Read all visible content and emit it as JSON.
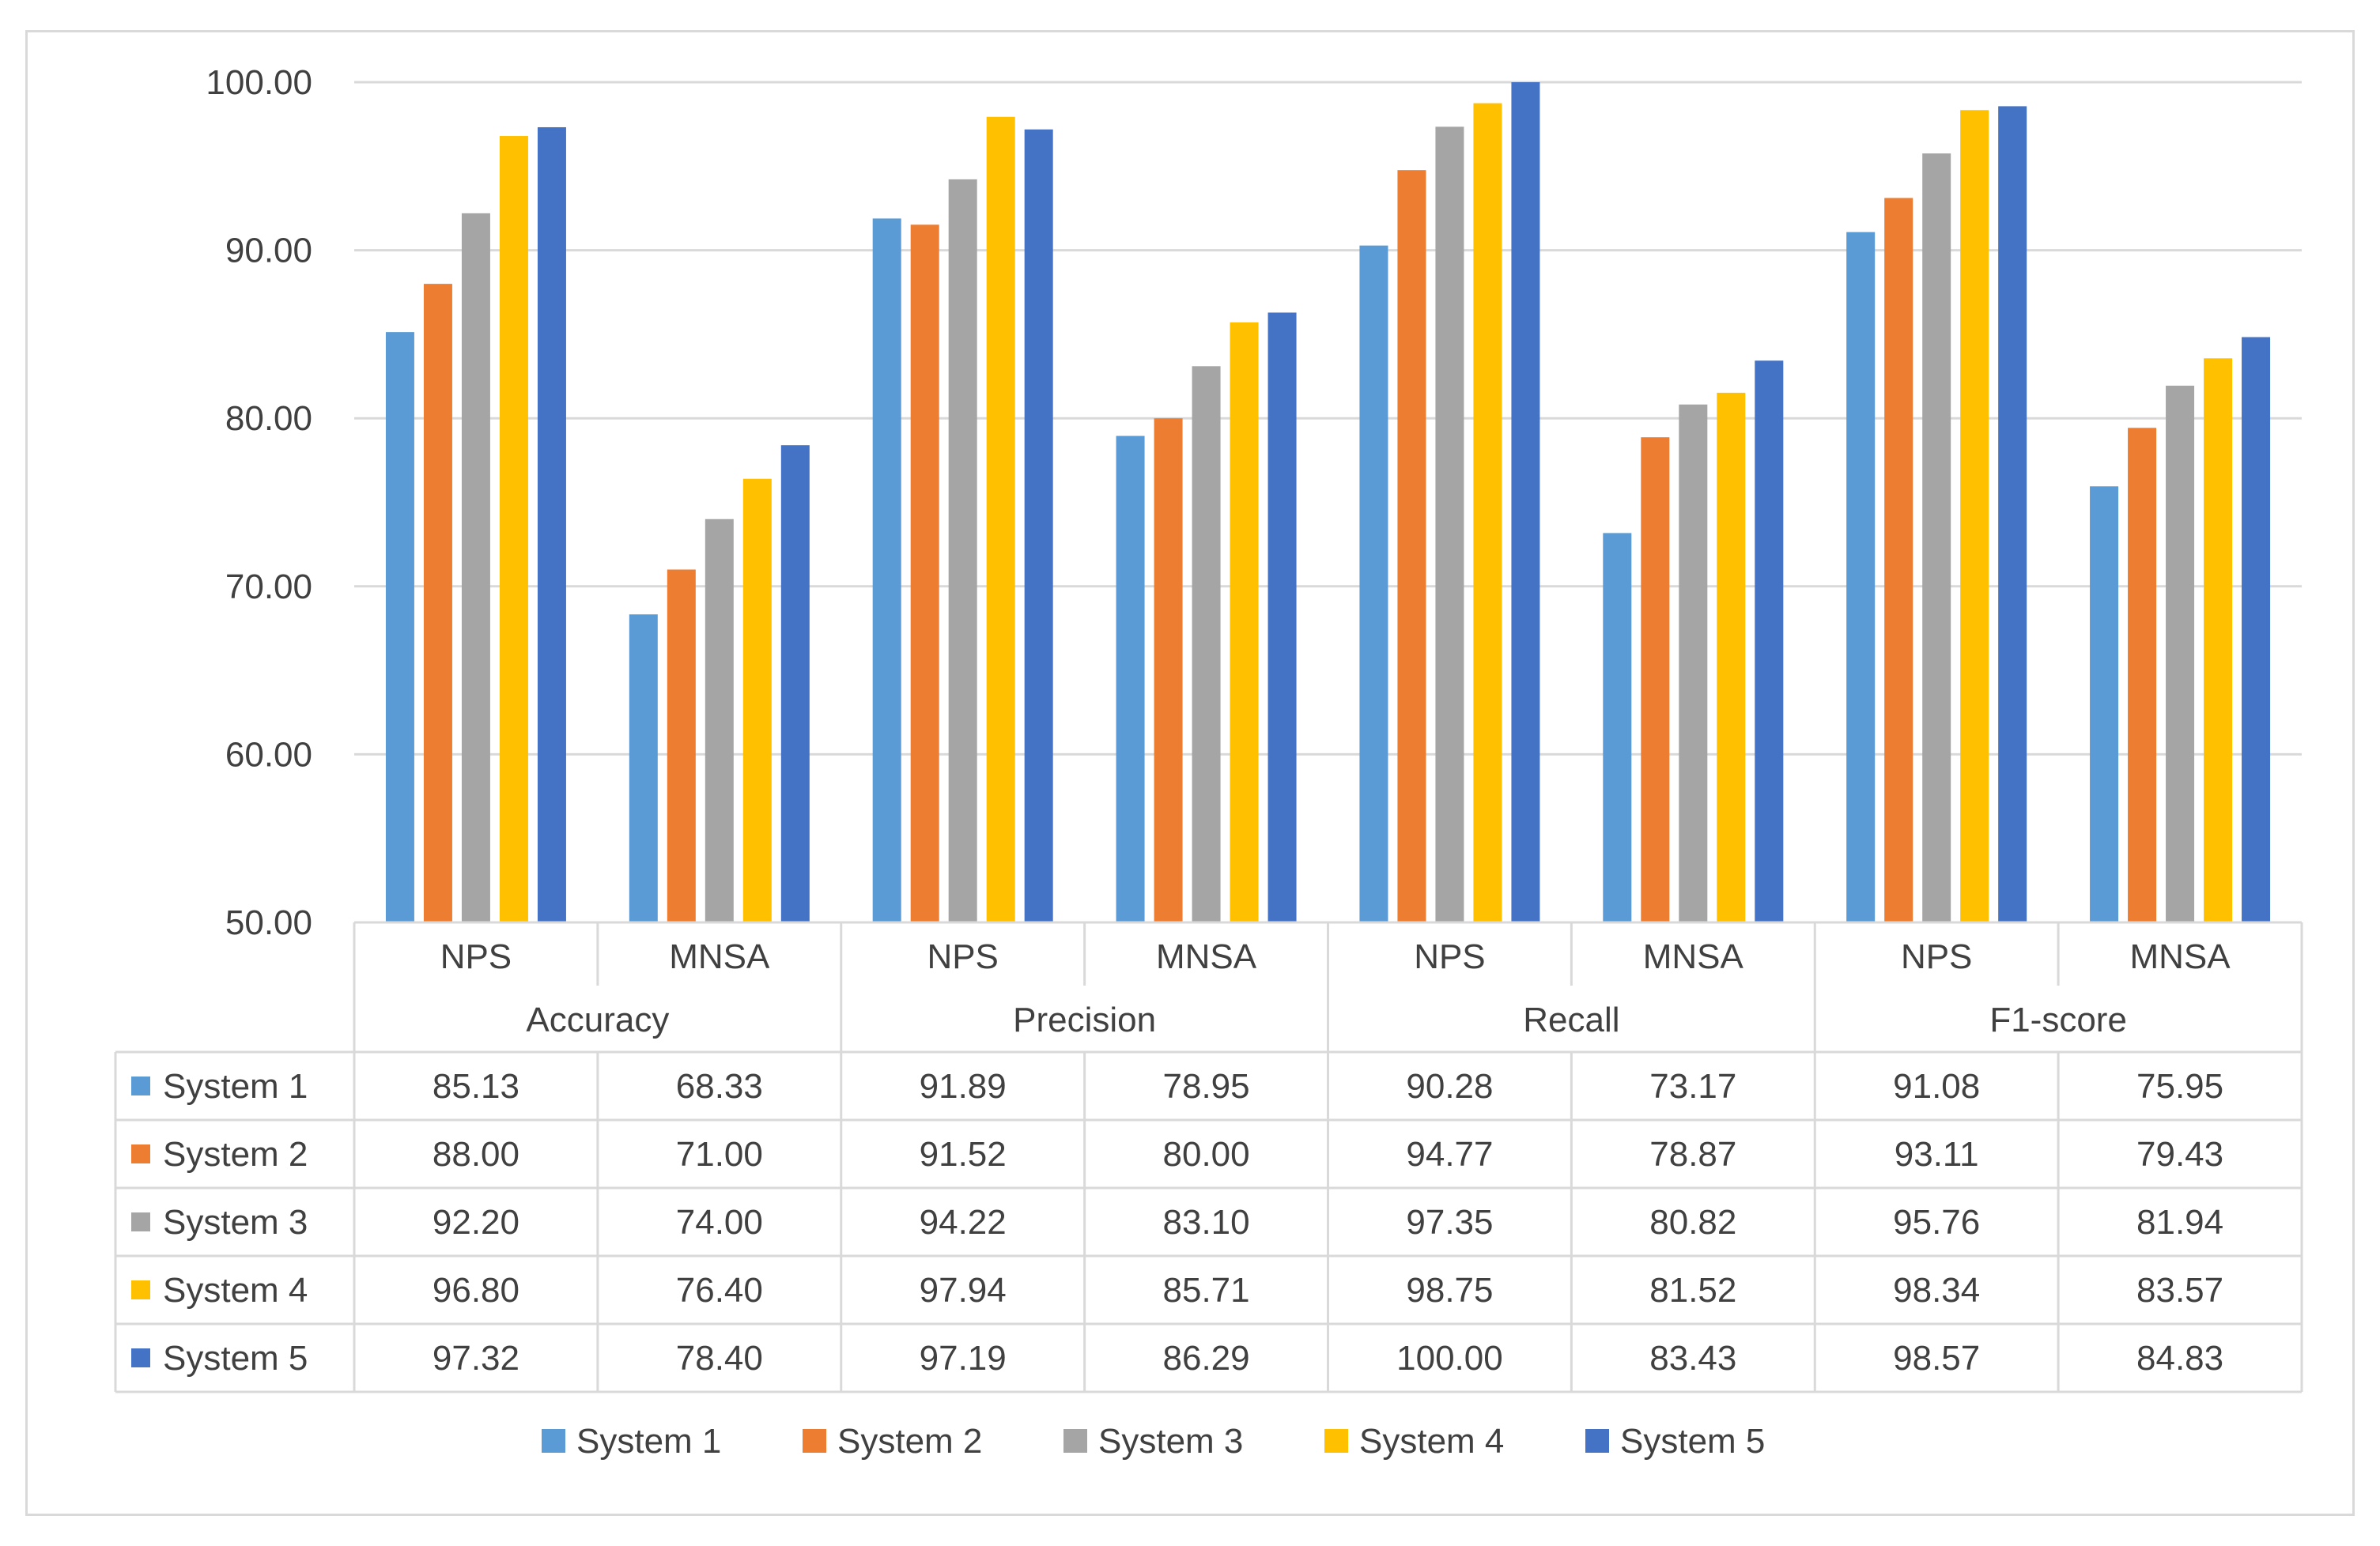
{
  "chart_data": {
    "type": "bar",
    "title": "",
    "xlabel": "",
    "ylabel": "",
    "ylim": [
      50,
      100
    ],
    "y_ticks": [
      "50.00",
      "60.00",
      "70.00",
      "80.00",
      "90.00",
      "100.00"
    ],
    "grid": true,
    "legend_position": "bottom",
    "metrics": [
      "Accuracy",
      "Precision",
      "Recall",
      "F1-score"
    ],
    "categories": [
      "NPS",
      "MNSA",
      "NPS",
      "MNSA",
      "NPS",
      "MNSA",
      "NPS",
      "MNSA"
    ],
    "series": [
      {
        "name": "System 1",
        "color": "#5B9BD5",
        "values": [
          85.13,
          68.33,
          91.89,
          78.95,
          90.28,
          73.17,
          91.08,
          75.95
        ],
        "labels": [
          "85.13",
          "68.33",
          "91.89",
          "78.95",
          "90.28",
          "73.17",
          "91.08",
          "75.95"
        ]
      },
      {
        "name": "System 2",
        "color": "#ED7D31",
        "values": [
          88.0,
          71.0,
          91.52,
          80.0,
          94.77,
          78.87,
          93.11,
          79.43
        ],
        "labels": [
          "88.00",
          "71.00",
          "91.52",
          "80.00",
          "94.77",
          "78.87",
          "93.11",
          "79.43"
        ]
      },
      {
        "name": "System 3",
        "color": "#A5A5A5",
        "values": [
          92.2,
          74.0,
          94.22,
          83.1,
          97.35,
          80.82,
          95.76,
          81.94
        ],
        "labels": [
          "92.20",
          "74.00",
          "94.22",
          "83.10",
          "97.35",
          "80.82",
          "95.76",
          "81.94"
        ]
      },
      {
        "name": "System 4",
        "color": "#FFC000",
        "values": [
          96.8,
          76.4,
          97.94,
          85.71,
          98.75,
          81.52,
          98.34,
          83.57
        ],
        "labels": [
          "96.80",
          "76.40",
          "97.94",
          "85.71",
          "98.75",
          "81.52",
          "98.34",
          "83.57"
        ]
      },
      {
        "name": "System 5",
        "color": "#4472C4",
        "values": [
          97.32,
          78.4,
          97.19,
          86.29,
          100.0,
          83.43,
          98.57,
          84.83
        ],
        "labels": [
          "97.32",
          "78.40",
          "97.19",
          "86.29",
          "100.00",
          "83.43",
          "98.57",
          "84.83"
        ]
      }
    ]
  }
}
